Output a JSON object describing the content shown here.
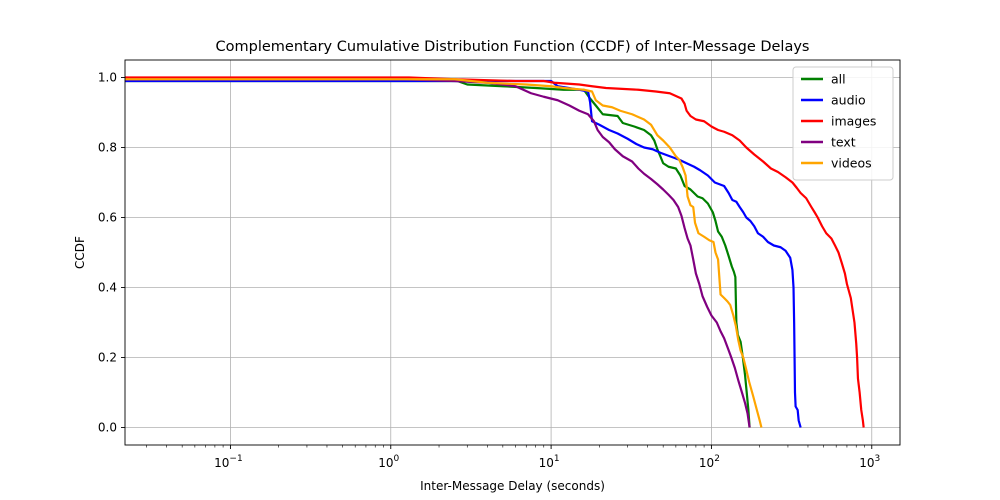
{
  "chart_data": {
    "type": "line",
    "title": "Complementary Cumulative Distribution Function (CCDF) of Inter-Message Delays",
    "xlabel": "Inter-Message Delay (seconds)",
    "ylabel": "CCDF",
    "xscale": "log",
    "xlim": [
      0.022,
      1500
    ],
    "ylim": [
      -0.05,
      1.05
    ],
    "grid": true,
    "legend_position": "top-right",
    "x_ticks": [
      {
        "value": 0.1,
        "base": "10",
        "exp": "−1"
      },
      {
        "value": 1,
        "base": "10",
        "exp": "0"
      },
      {
        "value": 10,
        "base": "10",
        "exp": "1"
      },
      {
        "value": 100,
        "base": "10",
        "exp": "2"
      },
      {
        "value": 1000,
        "base": "10",
        "exp": "3"
      }
    ],
    "y_ticks": [
      {
        "value": 0.0,
        "label": "0.0"
      },
      {
        "value": 0.2,
        "label": "0.2"
      },
      {
        "value": 0.4,
        "label": "0.4"
      },
      {
        "value": 0.6,
        "label": "0.6"
      },
      {
        "value": 0.8,
        "label": "0.8"
      },
      {
        "value": 1.0,
        "label": "1.0"
      }
    ],
    "series": [
      {
        "name": "all",
        "color": "#008000",
        "points": [
          [
            0.022,
            0.99
          ],
          [
            2.6,
            0.99
          ],
          [
            3,
            0.98
          ],
          [
            5,
            0.975
          ],
          [
            8,
            0.97
          ],
          [
            12,
            0.965
          ],
          [
            16,
            0.965
          ],
          [
            17.5,
            0.94
          ],
          [
            19,
            0.92
          ],
          [
            21,
            0.895
          ],
          [
            26,
            0.89
          ],
          [
            28,
            0.87
          ],
          [
            33,
            0.86
          ],
          [
            38,
            0.85
          ],
          [
            42,
            0.835
          ],
          [
            44,
            0.82
          ],
          [
            46,
            0.795
          ],
          [
            48,
            0.775
          ],
          [
            50,
            0.755
          ],
          [
            54,
            0.745
          ],
          [
            60,
            0.74
          ],
          [
            64,
            0.72
          ],
          [
            68,
            0.69
          ],
          [
            74,
            0.68
          ],
          [
            82,
            0.66
          ],
          [
            88,
            0.655
          ],
          [
            95,
            0.64
          ],
          [
            102,
            0.615
          ],
          [
            106,
            0.59
          ],
          [
            110,
            0.56
          ],
          [
            116,
            0.545
          ],
          [
            122,
            0.52
          ],
          [
            128,
            0.49
          ],
          [
            134,
            0.46
          ],
          [
            138,
            0.445
          ],
          [
            141,
            0.43
          ],
          [
            143,
            0.3
          ],
          [
            146,
            0.265
          ],
          [
            152,
            0.245
          ],
          [
            157,
            0.2
          ],
          [
            162,
            0.15
          ],
          [
            166,
            0.1
          ],
          [
            170,
            0.05
          ],
          [
            173,
            0.0
          ]
        ]
      },
      {
        "name": "audio",
        "color": "#0000ff",
        "points": [
          [
            0.022,
            0.99
          ],
          [
            10,
            0.99
          ],
          [
            11,
            0.975
          ],
          [
            15,
            0.965
          ],
          [
            17,
            0.96
          ],
          [
            17.5,
            0.93
          ],
          [
            18,
            0.875
          ],
          [
            20,
            0.865
          ],
          [
            23,
            0.85
          ],
          [
            26,
            0.84
          ],
          [
            30,
            0.825
          ],
          [
            34,
            0.81
          ],
          [
            38,
            0.8
          ],
          [
            43,
            0.795
          ],
          [
            48,
            0.785
          ],
          [
            55,
            0.775
          ],
          [
            63,
            0.765
          ],
          [
            70,
            0.755
          ],
          [
            78,
            0.745
          ],
          [
            85,
            0.735
          ],
          [
            95,
            0.72
          ],
          [
            105,
            0.7
          ],
          [
            120,
            0.69
          ],
          [
            128,
            0.67
          ],
          [
            135,
            0.65
          ],
          [
            143,
            0.645
          ],
          [
            150,
            0.63
          ],
          [
            158,
            0.615
          ],
          [
            165,
            0.6
          ],
          [
            175,
            0.59
          ],
          [
            185,
            0.575
          ],
          [
            195,
            0.555
          ],
          [
            210,
            0.545
          ],
          [
            225,
            0.53
          ],
          [
            245,
            0.52
          ],
          [
            270,
            0.515
          ],
          [
            290,
            0.505
          ],
          [
            310,
            0.485
          ],
          [
            320,
            0.45
          ],
          [
            325,
            0.4
          ],
          [
            328,
            0.3
          ],
          [
            330,
            0.2
          ],
          [
            332,
            0.1
          ],
          [
            335,
            0.06
          ],
          [
            345,
            0.05
          ],
          [
            350,
            0.02
          ],
          [
            360,
            0.0
          ]
        ]
      },
      {
        "name": "images",
        "color": "#ff0000",
        "points": [
          [
            0.022,
            1.0
          ],
          [
            1.3,
            1.0
          ],
          [
            2.5,
            0.995
          ],
          [
            6,
            0.99
          ],
          [
            9,
            0.99
          ],
          [
            10.5,
            0.985
          ],
          [
            15,
            0.98
          ],
          [
            18,
            0.975
          ],
          [
            22,
            0.97
          ],
          [
            35,
            0.965
          ],
          [
            45,
            0.96
          ],
          [
            55,
            0.955
          ],
          [
            65,
            0.94
          ],
          [
            68,
            0.925
          ],
          [
            70,
            0.905
          ],
          [
            74,
            0.89
          ],
          [
            80,
            0.88
          ],
          [
            90,
            0.875
          ],
          [
            100,
            0.86
          ],
          [
            110,
            0.85
          ],
          [
            120,
            0.845
          ],
          [
            135,
            0.835
          ],
          [
            150,
            0.82
          ],
          [
            165,
            0.8
          ],
          [
            185,
            0.78
          ],
          [
            210,
            0.76
          ],
          [
            235,
            0.74
          ],
          [
            260,
            0.73
          ],
          [
            290,
            0.715
          ],
          [
            320,
            0.7
          ],
          [
            340,
            0.685
          ],
          [
            360,
            0.67
          ],
          [
            390,
            0.655
          ],
          [
            420,
            0.63
          ],
          [
            440,
            0.615
          ],
          [
            460,
            0.6
          ],
          [
            490,
            0.575
          ],
          [
            520,
            0.555
          ],
          [
            560,
            0.54
          ],
          [
            590,
            0.52
          ],
          [
            620,
            0.5
          ],
          [
            650,
            0.47
          ],
          [
            680,
            0.44
          ],
          [
            700,
            0.41
          ],
          [
            740,
            0.37
          ],
          [
            780,
            0.3
          ],
          [
            800,
            0.24
          ],
          [
            810,
            0.2
          ],
          [
            820,
            0.14
          ],
          [
            840,
            0.1
          ],
          [
            860,
            0.05
          ],
          [
            880,
            0.02
          ],
          [
            890,
            0.0
          ]
        ]
      },
      {
        "name": "text",
        "color": "#800080",
        "points": [
          [
            0.022,
            0.995
          ],
          [
            1.2,
            0.995
          ],
          [
            2.5,
            0.99
          ],
          [
            4,
            0.985
          ],
          [
            6,
            0.975
          ],
          [
            7.5,
            0.955
          ],
          [
            9,
            0.945
          ],
          [
            11,
            0.935
          ],
          [
            13,
            0.92
          ],
          [
            15,
            0.905
          ],
          [
            17,
            0.895
          ],
          [
            18.5,
            0.875
          ],
          [
            19.5,
            0.85
          ],
          [
            21,
            0.83
          ],
          [
            23,
            0.815
          ],
          [
            25,
            0.795
          ],
          [
            28,
            0.775
          ],
          [
            32,
            0.76
          ],
          [
            35,
            0.74
          ],
          [
            38,
            0.725
          ],
          [
            42,
            0.71
          ],
          [
            46,
            0.695
          ],
          [
            50,
            0.68
          ],
          [
            54,
            0.665
          ],
          [
            58,
            0.65
          ],
          [
            62,
            0.63
          ],
          [
            65,
            0.605
          ],
          [
            68,
            0.57
          ],
          [
            71,
            0.54
          ],
          [
            74,
            0.52
          ],
          [
            77,
            0.48
          ],
          [
            80,
            0.44
          ],
          [
            84,
            0.41
          ],
          [
            88,
            0.375
          ],
          [
            94,
            0.345
          ],
          [
            100,
            0.32
          ],
          [
            108,
            0.3
          ],
          [
            114,
            0.275
          ],
          [
            120,
            0.255
          ],
          [
            127,
            0.225
          ],
          [
            133,
            0.2
          ],
          [
            140,
            0.17
          ],
          [
            147,
            0.135
          ],
          [
            155,
            0.1
          ],
          [
            162,
            0.07
          ],
          [
            168,
            0.04
          ],
          [
            173,
            0.0
          ]
        ]
      },
      {
        "name": "videos",
        "color": "#ffa500",
        "points": [
          [
            0.022,
            0.995
          ],
          [
            2.5,
            0.995
          ],
          [
            4,
            0.985
          ],
          [
            7,
            0.98
          ],
          [
            10,
            0.975
          ],
          [
            12,
            0.97
          ],
          [
            16,
            0.965
          ],
          [
            18,
            0.96
          ],
          [
            19,
            0.935
          ],
          [
            21,
            0.92
          ],
          [
            24,
            0.915
          ],
          [
            27,
            0.905
          ],
          [
            32,
            0.895
          ],
          [
            38,
            0.88
          ],
          [
            42,
            0.865
          ],
          [
            46,
            0.835
          ],
          [
            50,
            0.82
          ],
          [
            55,
            0.8
          ],
          [
            60,
            0.775
          ],
          [
            63,
            0.765
          ],
          [
            66,
            0.745
          ],
          [
            69,
            0.72
          ],
          [
            71,
            0.66
          ],
          [
            74,
            0.635
          ],
          [
            77,
            0.63
          ],
          [
            79,
            0.585
          ],
          [
            83,
            0.555
          ],
          [
            90,
            0.545
          ],
          [
            97,
            0.535
          ],
          [
            103,
            0.53
          ],
          [
            106,
            0.5
          ],
          [
            110,
            0.48
          ],
          [
            114,
            0.38
          ],
          [
            120,
            0.37
          ],
          [
            126,
            0.36
          ],
          [
            131,
            0.35
          ],
          [
            137,
            0.32
          ],
          [
            142,
            0.29
          ],
          [
            147,
            0.25
          ],
          [
            152,
            0.22
          ],
          [
            158,
            0.2
          ],
          [
            164,
            0.17
          ],
          [
            172,
            0.13
          ],
          [
            182,
            0.09
          ],
          [
            192,
            0.05
          ],
          [
            200,
            0.02
          ],
          [
            205,
            0.0
          ]
        ]
      }
    ]
  }
}
